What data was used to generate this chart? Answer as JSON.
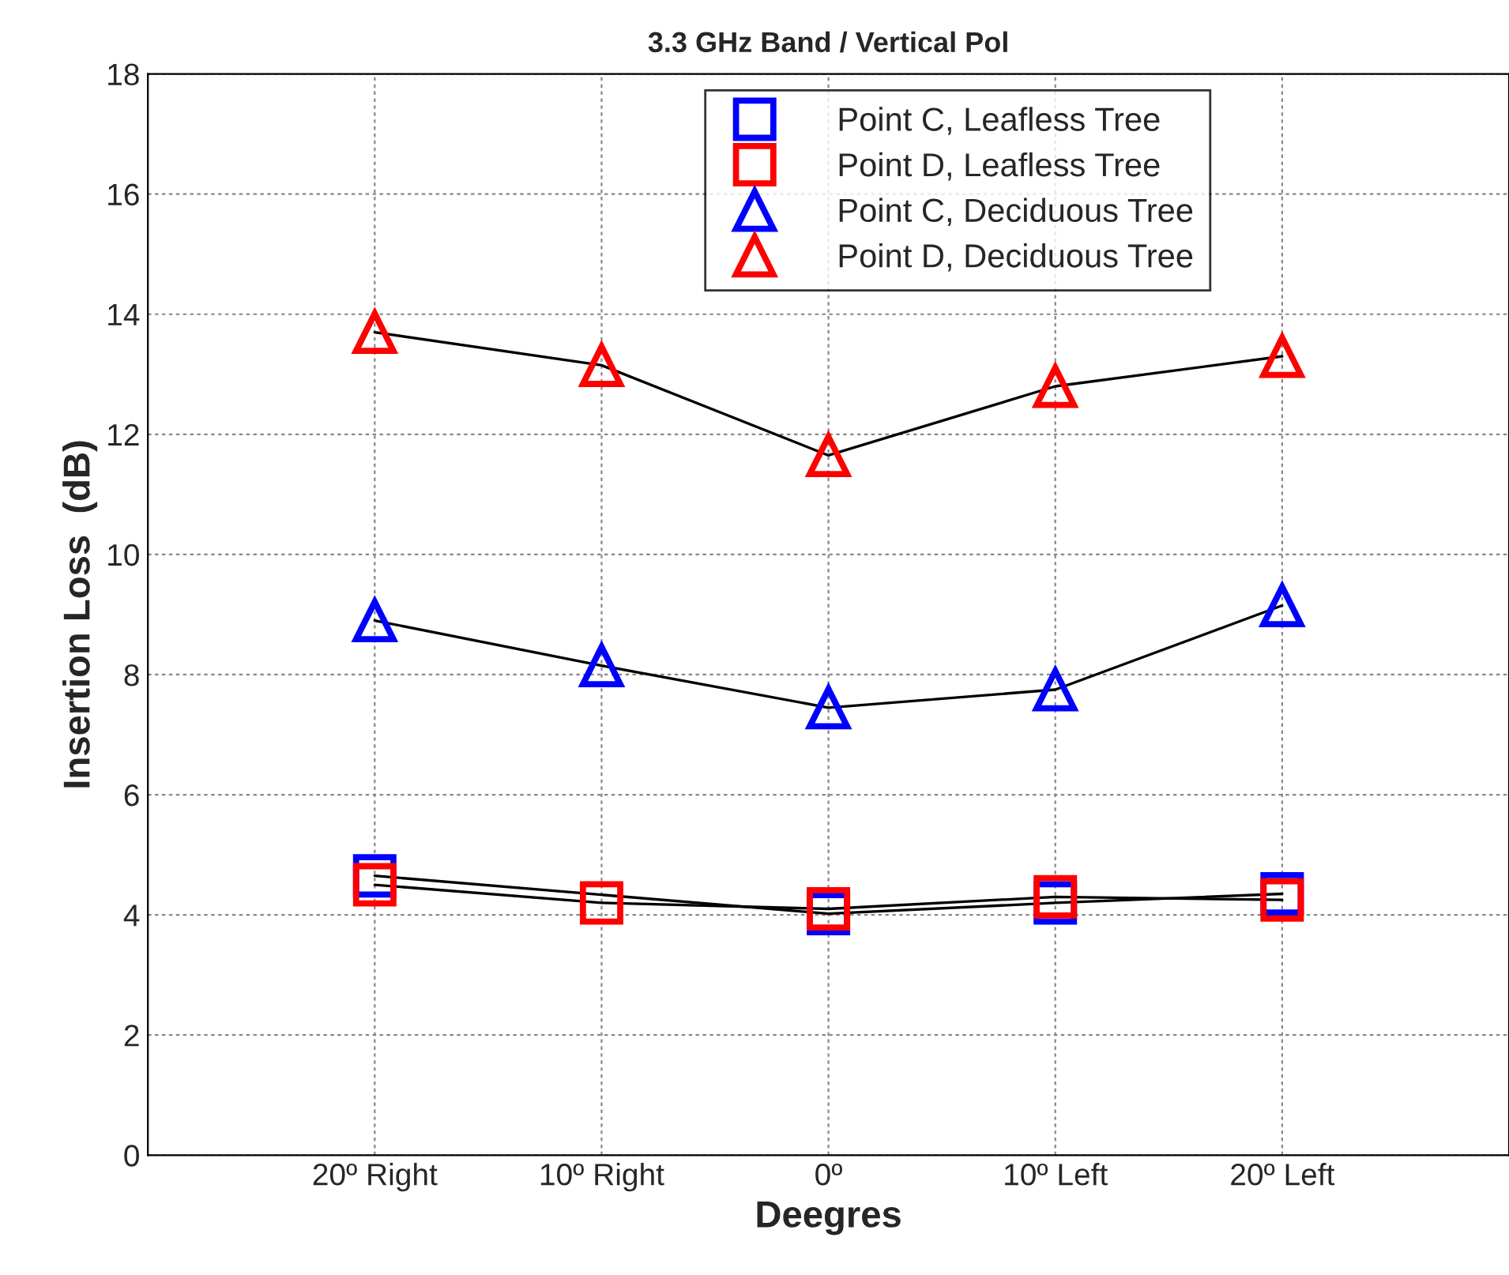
{
  "chart_data": {
    "type": "line",
    "title": "3.3 GHz Band / Vertical Pol",
    "xlabel": "Deegres",
    "ylabel": "Insertion Loss  (dB)",
    "categories": [
      "20º Right",
      "10º Right",
      "0º",
      "10º Left",
      "20º Left"
    ],
    "series": [
      {
        "name": "Point C, Leafless Tree",
        "color": "#0000ff",
        "marker": "square",
        "values": [
          4.65,
          null,
          4.02,
          4.2,
          4.35
        ]
      },
      {
        "name": "Point D, Leafless Tree",
        "color": "#ff0000",
        "marker": "square",
        "values": [
          4.5,
          4.2,
          4.1,
          4.3,
          4.25
        ]
      },
      {
        "name": "Point C, Deciduous Tree",
        "color": "#0000ff",
        "marker": "triangle",
        "values": [
          8.9,
          8.15,
          7.45,
          7.75,
          9.15
        ]
      },
      {
        "name": "Point D, Deciduous Tree",
        "color": "#ff0000",
        "marker": "triangle",
        "values": [
          13.7,
          13.15,
          11.65,
          12.8,
          13.3
        ]
      }
    ],
    "ylim": [
      0,
      18
    ],
    "yticks": [
      0,
      2,
      4,
      6,
      8,
      10,
      12,
      14,
      16,
      18
    ],
    "grid": true,
    "legend": "top",
    "line_style": "solid"
  }
}
